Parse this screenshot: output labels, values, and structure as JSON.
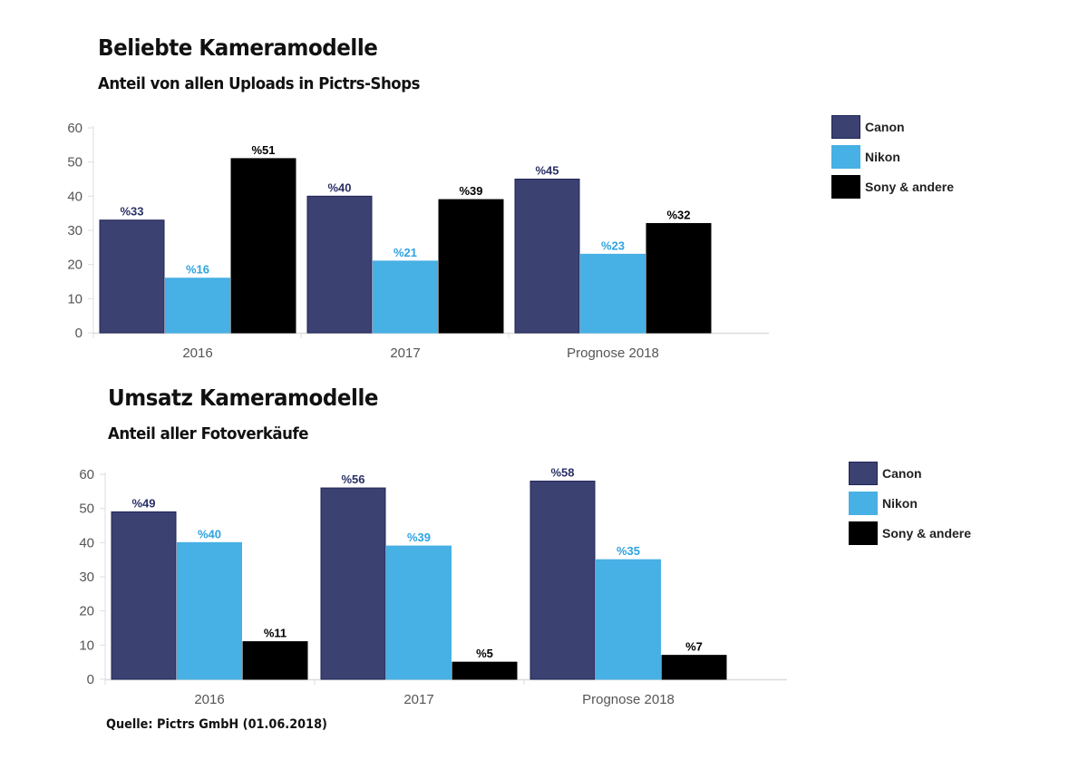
{
  "colors": {
    "canon": "#3b4171",
    "canon_border": "#1f2558",
    "nikon": "#47b0e4",
    "sony": "#000000",
    "canon_label": "#2a3066",
    "nikon_label": "#2fa3e0",
    "sony_label": "#000000",
    "axis": "#dddddd",
    "tick_text": "#555555"
  },
  "source": "Quelle: Pictrs GmbH (01.06.2018)",
  "chart_data": [
    {
      "type": "bar",
      "title": "Beliebte Kameramodelle",
      "subtitle": "Anteil von allen Uploads in Pictrs-Shops",
      "xlabel": "",
      "ylabel": "",
      "categories": [
        "2016",
        "2017",
        "Prognose 2018"
      ],
      "ylim": [
        0,
        60
      ],
      "yticks": [
        "0",
        "10",
        "20",
        "30",
        "40",
        "50",
        "60"
      ],
      "legend_position": "right",
      "series": [
        {
          "name": "Canon",
          "values": [
            33,
            40,
            45
          ],
          "labels": [
            "%33",
            "%40",
            "%45"
          ]
        },
        {
          "name": "Nikon",
          "values": [
            16,
            21,
            23
          ],
          "labels": [
            "%16",
            "%21",
            "%23"
          ]
        },
        {
          "name": "Sony & andere",
          "values": [
            51,
            39,
            32
          ],
          "labels": [
            "%51",
            "%39",
            "%32"
          ]
        }
      ]
    },
    {
      "type": "bar",
      "title": "Umsatz Kameramodelle",
      "subtitle": "Anteil aller Fotoverkäufe",
      "xlabel": "",
      "ylabel": "",
      "categories": [
        "2016",
        "2017",
        "Prognose 2018"
      ],
      "ylim": [
        0,
        60
      ],
      "yticks": [
        "0",
        "10",
        "20",
        "30",
        "40",
        "50",
        "60"
      ],
      "legend_position": "right",
      "series": [
        {
          "name": "Canon",
          "values": [
            49,
            56,
            58
          ],
          "labels": [
            "%49",
            "%56",
            "%58"
          ]
        },
        {
          "name": "Nikon",
          "values": [
            40,
            39,
            35
          ],
          "labels": [
            "%40",
            "%39",
            "%35"
          ]
        },
        {
          "name": "Sony & andere",
          "values": [
            11,
            5,
            7
          ],
          "labels": [
            "%11",
            "%5",
            "%7"
          ]
        }
      ]
    }
  ]
}
